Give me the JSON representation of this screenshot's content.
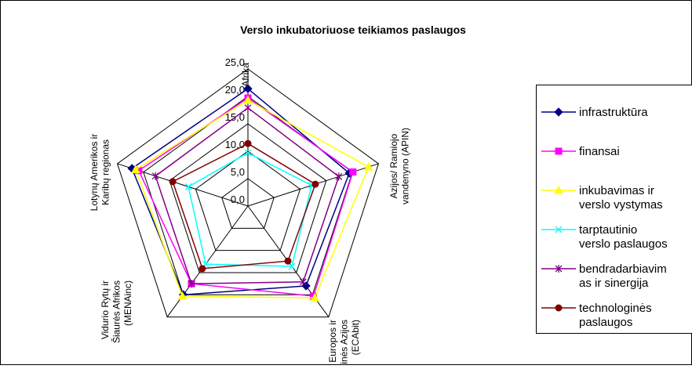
{
  "chart_data": {
    "type": "radar",
    "title": "Verslo inkubatoriuose teikiamos paslaugos",
    "categories": [
      "Afrika",
      "Azijos/ Ramiojo\nvandenyno (APIN)",
      "Rytų Europos ir\nCentrinės Azijos\n(ECAbit)",
      "Vidurio Rytų ir\nŠiaurės Afrikos\n(MENAinc)",
      "Lotynų Amerikos ir\nKaribų regionas"
    ],
    "rlim": [
      0,
      25
    ],
    "rticks": [
      {
        "value": 0,
        "label": "0,0"
      },
      {
        "value": 5,
        "label": "5,0"
      },
      {
        "value": 10,
        "label": "10,0"
      },
      {
        "value": 15,
        "label": "15,0"
      },
      {
        "value": 20,
        "label": "20,0"
      },
      {
        "value": 25,
        "label": "25,0"
      }
    ],
    "grid": true,
    "legend": "right",
    "series": [
      {
        "name": "infrastruktūra",
        "color": "#000080",
        "marker": "diamond",
        "values": [
          21.4,
          19.4,
          18.0,
          20.0,
          22.2
        ]
      },
      {
        "name": "finansai",
        "color": "#ff00ff",
        "marker": "square",
        "values": [
          19.7,
          20.1,
          20.3,
          17.5,
          20.9
        ]
      },
      {
        "name": "inkubavimas ir\nverslo vystymas",
        "color": "#ffff00",
        "marker": "triangle",
        "values": [
          19.3,
          23.1,
          20.7,
          20.3,
          21.5
        ]
      },
      {
        "name": "tarptautinio\nverslo paslaugos",
        "color": "#00ffff",
        "marker": "x",
        "values": [
          9.7,
          12.2,
          13.6,
          13.1,
          11.4
        ]
      },
      {
        "name": "bendradarbiavim\nas ir sinergija",
        "color": "#800080",
        "marker": "star",
        "values": [
          17.9,
          17.4,
          17.1,
          17.5,
          17.7
        ]
      },
      {
        "name": "technologinės\npaslaugos",
        "color": "#800000",
        "marker": "circle",
        "values": [
          11.4,
          12.9,
          12.4,
          14.1,
          14.4
        ]
      }
    ]
  }
}
